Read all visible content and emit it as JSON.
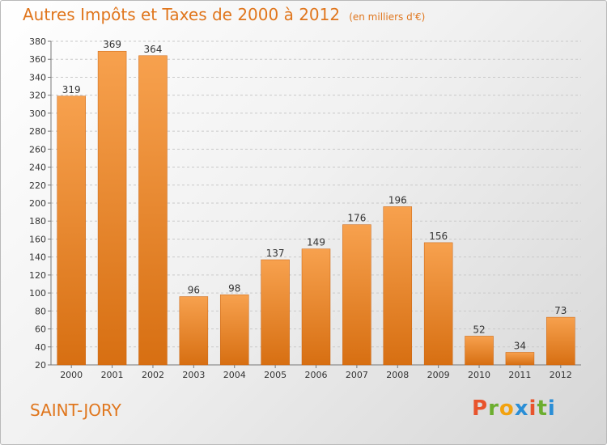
{
  "chart_data": {
    "type": "bar",
    "title": "Autres Impôts et Taxes de 2000 à 2012",
    "subtitle": "(en milliers d'€)",
    "categories": [
      "2000",
      "2001",
      "2002",
      "2003",
      "2004",
      "2005",
      "2006",
      "2007",
      "2008",
      "2009",
      "2010",
      "2011",
      "2012"
    ],
    "values": [
      319,
      369,
      364,
      96,
      98,
      137,
      149,
      176,
      196,
      156,
      52,
      34,
      73
    ],
    "ylim": [
      20,
      380
    ],
    "yticks": [
      20,
      40,
      60,
      80,
      100,
      120,
      140,
      160,
      180,
      200,
      220,
      240,
      260,
      280,
      300,
      320,
      340,
      360,
      380
    ],
    "grid": true,
    "colors": {
      "bar_top": "#f7a14e",
      "bar_bottom": "#d76f12",
      "title": "#e0761d"
    }
  },
  "footer": {
    "town": "SAINT-JORY",
    "brand": "Proxiti",
    "brand_colors": [
      "#e8542c",
      "#6cae2f",
      "#f2a20f",
      "#2a8ed6",
      "#e8542c",
      "#6cae2f",
      "#2a8ed6"
    ]
  }
}
